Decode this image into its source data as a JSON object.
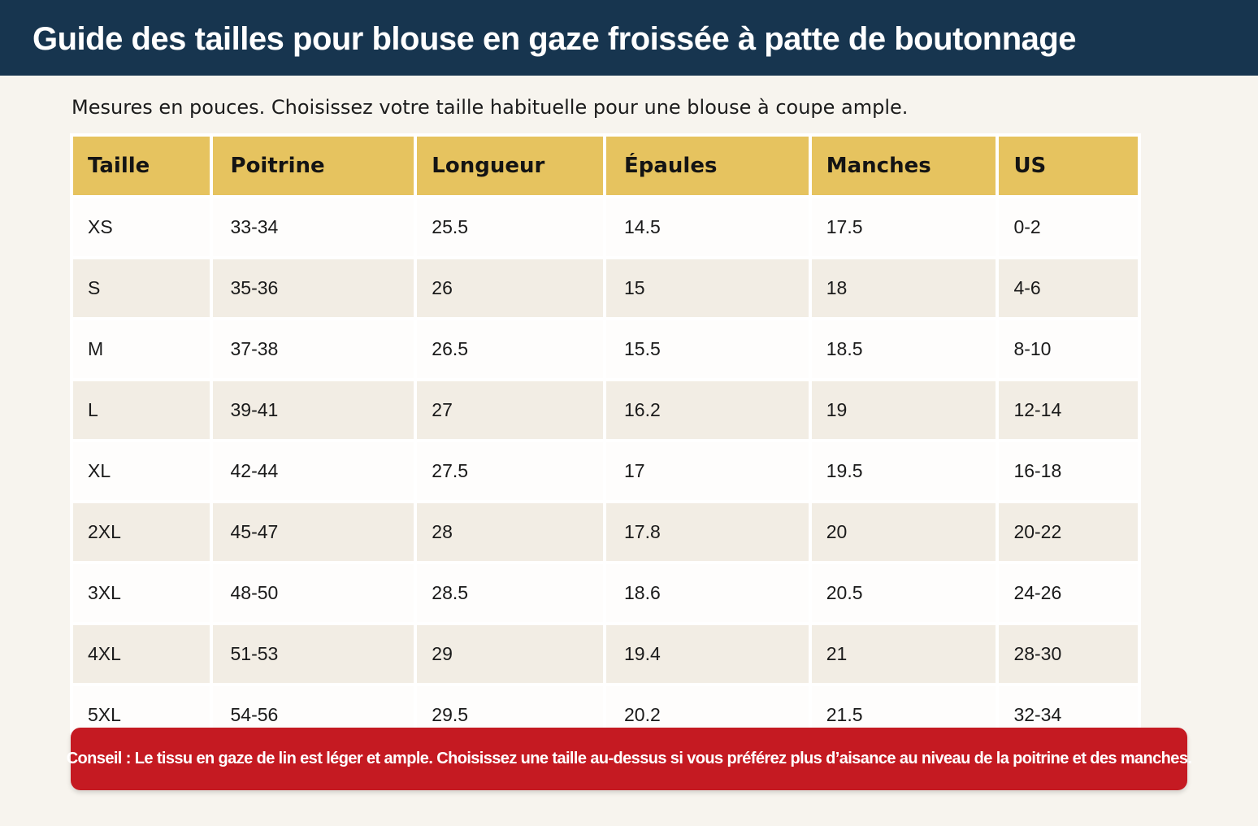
{
  "page": {
    "title": "Guide des tailles pour blouse en gaze froissée à patte de boutonnage",
    "subtitle": "Mesures en pouces. Choisissez votre taille habituelle pour une blouse à coupe ample."
  },
  "table": {
    "headers": [
      "Taille",
      "Poitrine",
      "Longueur",
      "Épaules",
      "Manches",
      "US"
    ],
    "rows": [
      [
        "XS",
        "33-34",
        "25.5",
        "14.5",
        "17.5",
        "0-2"
      ],
      [
        "S",
        "35-36",
        "26",
        "15",
        "18",
        "4-6"
      ],
      [
        "M",
        "37-38",
        "26.5",
        "15.5",
        "18.5",
        "8-10"
      ],
      [
        "L",
        "39-41",
        "27",
        "16.2",
        "19",
        "12-14"
      ],
      [
        "XL",
        "42-44",
        "27.5",
        "17",
        "19.5",
        "16-18"
      ],
      [
        "2XL",
        "45-47",
        "28",
        "17.8",
        "20",
        "20-22"
      ],
      [
        "3XL",
        "48-50",
        "28.5",
        "18.6",
        "20.5",
        "24-26"
      ],
      [
        "4XL",
        "51-53",
        "29",
        "19.4",
        "21",
        "28-30"
      ],
      [
        "5XL",
        "54-56",
        "29.5",
        "20.2",
        "21.5",
        "32-34"
      ]
    ]
  },
  "tip": {
    "text": "Conseil : Le tissu en gaze de lin est léger et ample. Choisissez une taille au-dessus si vous préférez plus d’aisance au niveau de la poitrine et des manches."
  },
  "colors": {
    "header_bg": "#17354f",
    "table_header_bg": "#e6c35f",
    "row_alt_bg": "#f2ede4",
    "tip_bg": "#c51a22",
    "page_bg": "#f7f4ee"
  }
}
